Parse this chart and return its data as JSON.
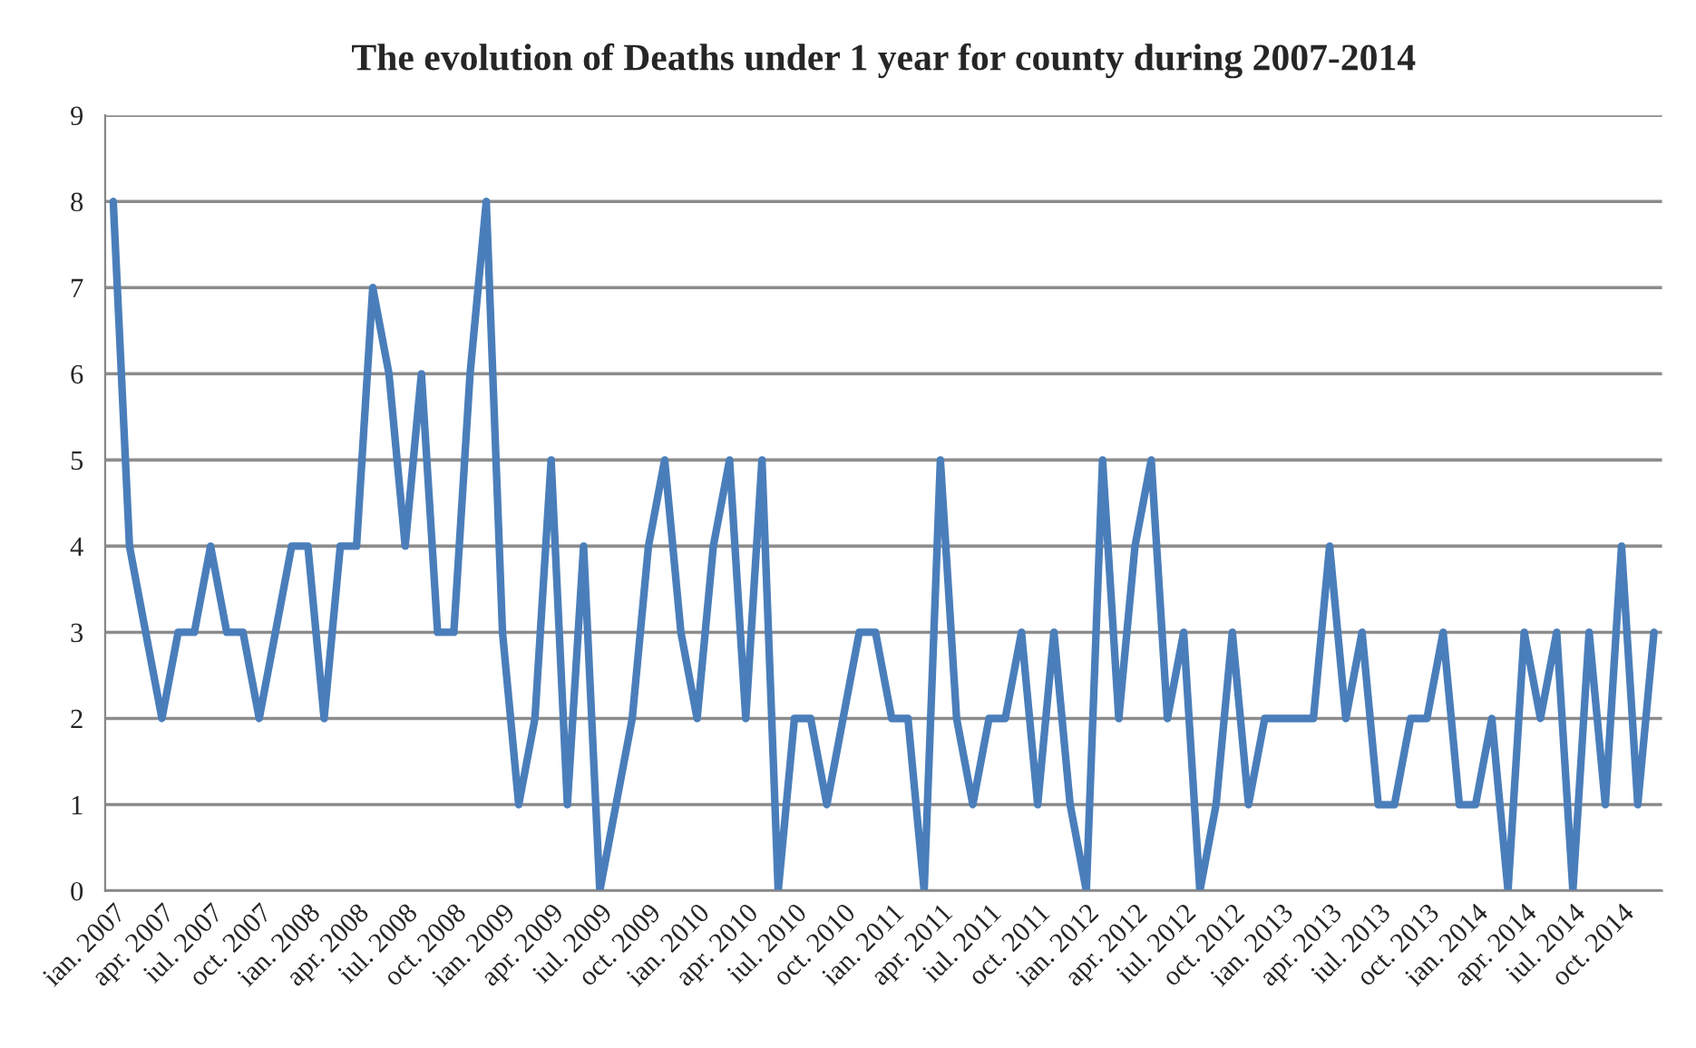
{
  "chart_data": {
    "type": "line",
    "title": "The evolution of Deaths under 1 year for county during 2007-2014",
    "categories": [
      "ian. 2007",
      null,
      null,
      "apr. 2007",
      null,
      null,
      "iul. 2007",
      null,
      null,
      "oct. 2007",
      null,
      null,
      "ian. 2008",
      null,
      null,
      "apr. 2008",
      null,
      null,
      "iul. 2008",
      null,
      null,
      "oct. 2008",
      null,
      null,
      "ian. 2009",
      null,
      null,
      "apr. 2009",
      null,
      null,
      "iul. 2009",
      null,
      null,
      "oct. 2009",
      null,
      null,
      "ian. 2010",
      null,
      null,
      "apr. 2010",
      null,
      null,
      "iul. 2010",
      null,
      null,
      "oct. 2010",
      null,
      null,
      "ian. 2011",
      null,
      null,
      "apr. 2011",
      null,
      null,
      "iul. 2011",
      null,
      null,
      "oct. 2011",
      null,
      null,
      "ian. 2012",
      null,
      null,
      "apr. 2012",
      null,
      null,
      "iul. 2012",
      null,
      null,
      "oct. 2012",
      null,
      null,
      "ian. 2013",
      null,
      null,
      "apr. 2013",
      null,
      null,
      "iul. 2013",
      null,
      null,
      "oct. 2013",
      null,
      null,
      "ian. 2014",
      null,
      null,
      "apr. 2014",
      null,
      null,
      "iul. 2014",
      null,
      null,
      "oct. 2014",
      null,
      null
    ],
    "series": [
      {
        "color": "#4a7ebb",
        "values": [
          8,
          4,
          3,
          2,
          3,
          3,
          4,
          3,
          3,
          2,
          3,
          4,
          4,
          2,
          4,
          4,
          7,
          6,
          4,
          6,
          3,
          3,
          6,
          8,
          3,
          1,
          2,
          5,
          1,
          4,
          0,
          1,
          2,
          4,
          5,
          3,
          2,
          4,
          5,
          2,
          5,
          0,
          2,
          2,
          1,
          2,
          3,
          3,
          2,
          2,
          0,
          5,
          2,
          1,
          2,
          2,
          3,
          1,
          3,
          1,
          0,
          5,
          2,
          4,
          5,
          2,
          3,
          0,
          1,
          3,
          1,
          2,
          2,
          2,
          2,
          4,
          2,
          3,
          1,
          1,
          2,
          2,
          3,
          1,
          1,
          2,
          0,
          3,
          2,
          3,
          0,
          3,
          1,
          4,
          1,
          3
        ]
      }
    ],
    "ylim": [
      0,
      9
    ],
    "yticks": [
      0,
      1,
      2,
      3,
      4,
      5,
      6,
      7,
      8,
      9
    ],
    "grid": "y",
    "marker": "none",
    "line_style": "solid",
    "legend": false
  }
}
